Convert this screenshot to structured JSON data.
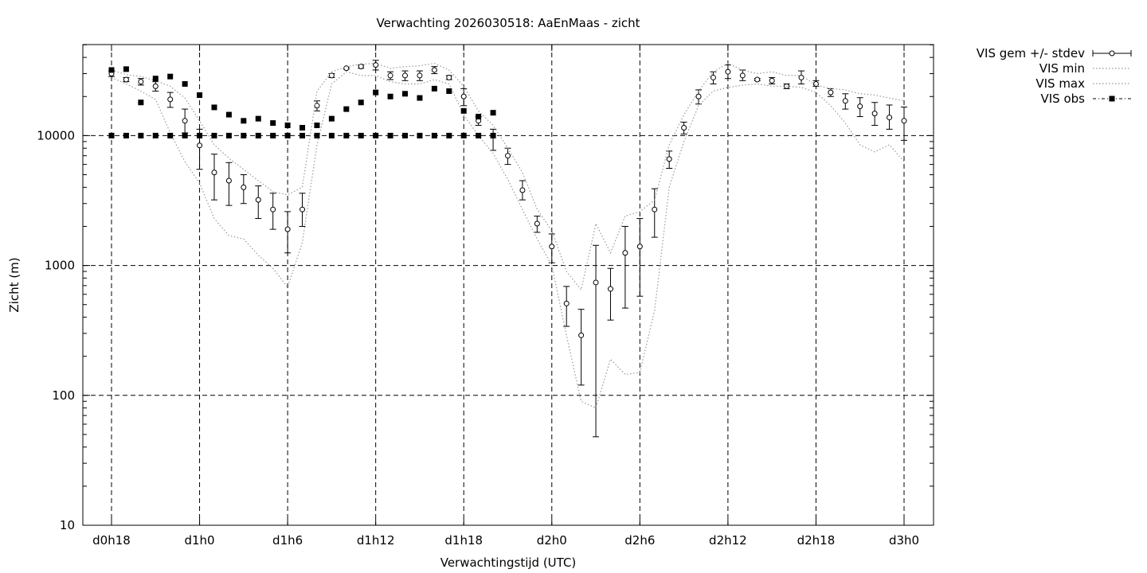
{
  "chart_data": {
    "type": "scatter",
    "title": "Verwachting 2026030518: AaEnMaas - zicht",
    "xlabel": "Verwachtingstijd (UTC)",
    "ylabel": "Zicht (m)",
    "xlim": [
      17,
      71
    ],
    "ylim": [
      10,
      50000
    ],
    "yscale": "log",
    "grid": true,
    "legend_position": "outside-top-right",
    "x_ticks": [
      {
        "value": 18,
        "label": "d0h18"
      },
      {
        "value": 24,
        "label": "d1h0"
      },
      {
        "value": 30,
        "label": "d1h6"
      },
      {
        "value": 36,
        "label": "d1h12"
      },
      {
        "value": 42,
        "label": "d1h18"
      },
      {
        "value": 48,
        "label": "d2h0"
      },
      {
        "value": 54,
        "label": "d2h6"
      },
      {
        "value": 60,
        "label": "d2h12"
      },
      {
        "value": 66,
        "label": "d2h18"
      },
      {
        "value": 72,
        "label": "d3h0"
      }
    ],
    "y_ticks": [
      {
        "value": 10,
        "label": "10"
      },
      {
        "value": 100,
        "label": "100"
      },
      {
        "value": 1000,
        "label": "1000"
      },
      {
        "value": 10000,
        "label": "10000"
      }
    ],
    "series": [
      {
        "name": "VIS gem +/- stdev",
        "style": "errorbars",
        "color": "#000000",
        "x": [
          18,
          19,
          20,
          21,
          22,
          23,
          24,
          25,
          26,
          27,
          28,
          29,
          30,
          31,
          32,
          33,
          34,
          35,
          36,
          37,
          38,
          39,
          40,
          41,
          42,
          43,
          44,
          45,
          46,
          47,
          48,
          49,
          50,
          51,
          52,
          53,
          54,
          55,
          56,
          57,
          58,
          59,
          60,
          61,
          62,
          63,
          64,
          65,
          66,
          67,
          68,
          69,
          70,
          71,
          72
        ],
        "mean": [
          30000,
          27000,
          26000,
          24000,
          19000,
          13000,
          8400,
          5200,
          4500,
          4000,
          3200,
          2700,
          1900,
          2700,
          17000,
          29000,
          33000,
          34000,
          35000,
          29000,
          29000,
          29000,
          32000,
          28000,
          20000,
          13000,
          10000,
          7000,
          3800,
          2100,
          1400,
          510,
          290,
          740,
          660,
          1250,
          1400,
          2700,
          6600,
          11500,
          20000,
          28000,
          31000,
          29000,
          27000,
          26500,
          24000,
          28000,
          25000,
          21500,
          18500,
          16800,
          14800,
          13800,
          13000
        ],
        "lower": [
          28500,
          26000,
          24500,
          22000,
          16500,
          10500,
          5500,
          3200,
          2900,
          3000,
          2300,
          1900,
          1250,
          2000,
          15500,
          28000,
          32500,
          33000,
          32000,
          27000,
          26500,
          26500,
          30000,
          27000,
          17000,
          12000,
          7700,
          6000,
          3200,
          1800,
          1050,
          340,
          120,
          48,
          380,
          470,
          580,
          1650,
          5600,
          10300,
          17500,
          25000,
          27500,
          26500,
          26500,
          25000,
          23000,
          25000,
          24000,
          20000,
          16000,
          14000,
          12000,
          11200,
          9200
        ],
        "upper": [
          31500,
          28000,
          27500,
          26000,
          21500,
          16000,
          11200,
          7200,
          6200,
          5000,
          4100,
          3600,
          2600,
          3600,
          18500,
          30000,
          33500,
          35000,
          38000,
          31000,
          31500,
          31500,
          34000,
          29000,
          23000,
          14000,
          11200,
          8000,
          4500,
          2400,
          1750,
          690,
          460,
          1430,
          950,
          2000,
          2300,
          3900,
          7600,
          12700,
          22500,
          31000,
          35000,
          32000,
          27500,
          28000,
          25000,
          31500,
          26500,
          23000,
          21000,
          19600,
          18000,
          17200,
          16600
        ]
      },
      {
        "name": "VIS min",
        "style": "dotted",
        "color": "#999999",
        "x": [
          18,
          19,
          20,
          21,
          22,
          23,
          24,
          25,
          26,
          27,
          28,
          29,
          30,
          31,
          32,
          33,
          34,
          35,
          36,
          37,
          38,
          39,
          40,
          41,
          42,
          43,
          44,
          45,
          46,
          47,
          48,
          49,
          50,
          51,
          52,
          53,
          54,
          55,
          56,
          57,
          58,
          59,
          60,
          61,
          62,
          63,
          64,
          65,
          66,
          67,
          68,
          69,
          70,
          71,
          72
        ],
        "values": [
          28000,
          25000,
          22000,
          19000,
          10500,
          6300,
          4300,
          2300,
          1700,
          1600,
          1200,
          950,
          680,
          1500,
          8500,
          25000,
          31000,
          29000,
          29000,
          26000,
          25000,
          25000,
          27000,
          25000,
          14500,
          10000,
          7300,
          4600,
          2700,
          1600,
          1000,
          290,
          90,
          80,
          190,
          145,
          150,
          450,
          4000,
          9000,
          17000,
          22000,
          23500,
          24500,
          25000,
          24000,
          24000,
          23500,
          21500,
          17000,
          12500,
          8500,
          7500,
          8500,
          6300
        ]
      },
      {
        "name": "VIS max",
        "style": "dotted",
        "color": "#999999",
        "x": [
          18,
          19,
          20,
          21,
          22,
          23,
          24,
          25,
          26,
          27,
          28,
          29,
          30,
          31,
          32,
          33,
          34,
          35,
          36,
          37,
          38,
          39,
          40,
          41,
          42,
          43,
          44,
          45,
          46,
          47,
          48,
          49,
          50,
          51,
          52,
          53,
          54,
          55,
          56,
          57,
          58,
          59,
          60,
          61,
          62,
          63,
          64,
          65,
          66,
          67,
          68,
          69,
          70,
          71,
          72
        ],
        "values": [
          32000,
          29500,
          28500,
          26500,
          24000,
          19500,
          13000,
          8500,
          6700,
          5500,
          4500,
          3700,
          3500,
          4000,
          22000,
          31000,
          34000,
          35500,
          36000,
          33000,
          34000,
          34500,
          36000,
          32000,
          24000,
          15500,
          12000,
          8000,
          5200,
          2700,
          1850,
          900,
          650,
          2100,
          1250,
          2400,
          2600,
          3200,
          8500,
          14500,
          22000,
          31000,
          36000,
          32000,
          30000,
          31000,
          29000,
          29000,
          24500,
          23000,
          22500,
          21000,
          20500,
          19500,
          18500
        ]
      },
      {
        "name": "VIS obs",
        "style": "points",
        "color": "#000000",
        "x": [
          18,
          19,
          20,
          21,
          22,
          23,
          24,
          25,
          26,
          27,
          28,
          29,
          30,
          31,
          32,
          33,
          34,
          35,
          36,
          37,
          38,
          39,
          40,
          41,
          42,
          43,
          44,
          18,
          19,
          20,
          21,
          22,
          23,
          24,
          25,
          26,
          27,
          28,
          29,
          30,
          31,
          32,
          33,
          34,
          35,
          36,
          37,
          38,
          39,
          40,
          41,
          42,
          43,
          44
        ],
        "values": [
          32000,
          32500,
          18000,
          27500,
          28500,
          25000,
          20500,
          16500,
          14500,
          13000,
          13500,
          12500,
          12000,
          11500,
          12000,
          13500,
          16000,
          18000,
          21500,
          20000,
          21000,
          19500,
          23000,
          22000,
          15500,
          14000,
          15000,
          10000,
          10000,
          10000,
          10000,
          10000,
          10000,
          10000,
          10000,
          10000,
          10000,
          10000,
          10000,
          10000,
          10000,
          10000,
          10000,
          10000,
          10000,
          10000,
          10000,
          10000,
          10000,
          10000,
          10000,
          10000,
          10000,
          10000
        ]
      }
    ]
  }
}
